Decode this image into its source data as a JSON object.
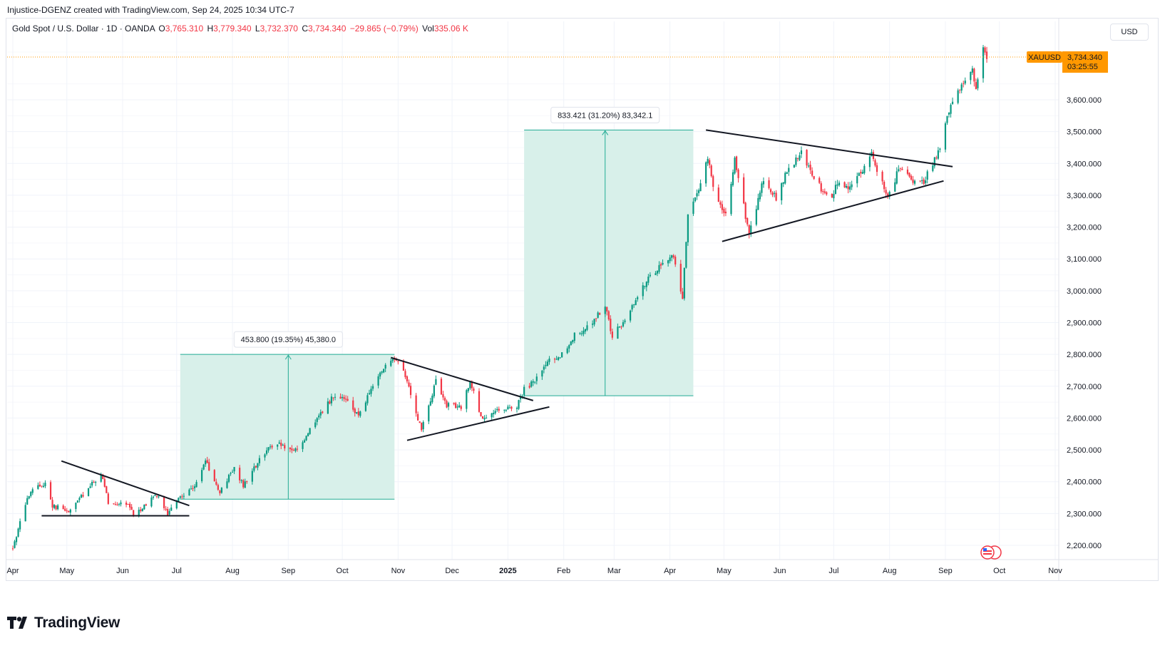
{
  "header": {
    "attribution": "Injustice-DGENZ created with TradingView.com, Sep 24, 2025 10:34 UTC-7"
  },
  "legend": {
    "symbol": "Gold Spot / U.S. Dollar · 1D · OANDA",
    "o_label": "O",
    "o": "3,765.310",
    "h_label": "H",
    "h": "3,779.340",
    "l_label": "L",
    "l": "3,732.370",
    "c_label": "C",
    "c": "3,734.340",
    "change": "−29.865 (−0.79%)",
    "vol_label": "Vol",
    "vol": "335.06 K"
  },
  "currency_button": "USD",
  "price_tag": {
    "symbol": "XAUUSD",
    "price": "3,734.340",
    "countdown": "03:25:55"
  },
  "brand": {
    "name": "TradingView"
  },
  "colors": {
    "up": "#089981",
    "down": "#f23645",
    "accent": "#ff9800",
    "zone": "#d6efe9",
    "zone_line": "#22ab94"
  },
  "chart_data": {
    "type": "candlestick",
    "title": "Gold Spot / U.S. Dollar",
    "interval": "1D",
    "ylim": [
      2150,
      3850
    ],
    "y_ticks": [
      {
        "value": 2200,
        "label": "2,200.000"
      },
      {
        "value": 2300,
        "label": "2,300.000"
      },
      {
        "value": 2400,
        "label": "2,400.000"
      },
      {
        "value": 2500,
        "label": "2,500.000"
      },
      {
        "value": 2600,
        "label": "2,600.000"
      },
      {
        "value": 2700,
        "label": "2,700.000"
      },
      {
        "value": 2800,
        "label": "2,800.000"
      },
      {
        "value": 2900,
        "label": "2,900.000"
      },
      {
        "value": 3000,
        "label": "3,000.000"
      },
      {
        "value": 3100,
        "label": "3,100.000"
      },
      {
        "value": 3200,
        "label": "3,200.000"
      },
      {
        "value": 3300,
        "label": "3,300.000"
      },
      {
        "value": 3400,
        "label": "3,400.000"
      },
      {
        "value": 3500,
        "label": "3,500.000"
      },
      {
        "value": 3600,
        "label": "3,600.000"
      }
    ],
    "x_range": [
      "2024-04-01",
      "2025-11-01"
    ],
    "x_ticks": [
      {
        "date": "2024-04-01",
        "label": "Apr",
        "bold": false
      },
      {
        "date": "2024-05-01",
        "label": "May",
        "bold": false
      },
      {
        "date": "2024-06-01",
        "label": "Jun",
        "bold": false
      },
      {
        "date": "2024-07-01",
        "label": "Jul",
        "bold": false
      },
      {
        "date": "2024-08-01",
        "label": "Aug",
        "bold": false
      },
      {
        "date": "2024-09-01",
        "label": "Sep",
        "bold": false
      },
      {
        "date": "2024-10-01",
        "label": "Oct",
        "bold": false
      },
      {
        "date": "2024-11-01",
        "label": "Nov",
        "bold": false
      },
      {
        "date": "2024-12-01",
        "label": "Dec",
        "bold": false
      },
      {
        "date": "2025-01-01",
        "label": "2025",
        "bold": true
      },
      {
        "date": "2025-02-01",
        "label": "Feb",
        "bold": false
      },
      {
        "date": "2025-03-01",
        "label": "Mar",
        "bold": false
      },
      {
        "date": "2025-04-01",
        "label": "Apr",
        "bold": false
      },
      {
        "date": "2025-05-01",
        "label": "May",
        "bold": false
      },
      {
        "date": "2025-06-01",
        "label": "Jun",
        "bold": false
      },
      {
        "date": "2025-07-01",
        "label": "Jul",
        "bold": false
      },
      {
        "date": "2025-08-01",
        "label": "Aug",
        "bold": false
      },
      {
        "date": "2025-09-01",
        "label": "Sep",
        "bold": false
      },
      {
        "date": "2025-10-01",
        "label": "Oct",
        "bold": false
      },
      {
        "date": "2025-11-01",
        "label": "Nov",
        "bold": false
      }
    ],
    "last_price": 3734.34,
    "close_path": [
      [
        "2024-04-01",
        2190
      ],
      [
        "2024-04-08",
        2330
      ],
      [
        "2024-04-12",
        2375
      ],
      [
        "2024-04-19",
        2395
      ],
      [
        "2024-04-23",
        2325
      ],
      [
        "2024-05-02",
        2305
      ],
      [
        "2024-05-10",
        2360
      ],
      [
        "2024-05-20",
        2425
      ],
      [
        "2024-05-24",
        2335
      ],
      [
        "2024-06-04",
        2330
      ],
      [
        "2024-06-07",
        2295
      ],
      [
        "2024-06-14",
        2330
      ],
      [
        "2024-06-20",
        2360
      ],
      [
        "2024-06-26",
        2300
      ],
      [
        "2024-07-03",
        2355
      ],
      [
        "2024-07-10",
        2380
      ],
      [
        "2024-07-17",
        2465
      ],
      [
        "2024-07-25",
        2365
      ],
      [
        "2024-08-02",
        2445
      ],
      [
        "2024-08-07",
        2385
      ],
      [
        "2024-08-15",
        2460
      ],
      [
        "2024-08-21",
        2510
      ],
      [
        "2024-08-26",
        2520
      ],
      [
        "2024-09-06",
        2495
      ],
      [
        "2024-09-12",
        2555
      ],
      [
        "2024-09-20",
        2620
      ],
      [
        "2024-09-26",
        2670
      ],
      [
        "2024-10-02",
        2660
      ],
      [
        "2024-10-10",
        2610
      ],
      [
        "2024-10-18",
        2700
      ],
      [
        "2024-10-22",
        2745
      ],
      [
        "2024-10-30",
        2785
      ],
      [
        "2024-11-05",
        2735
      ],
      [
        "2024-11-12",
        2600
      ],
      [
        "2024-11-14",
        2565
      ],
      [
        "2024-11-22",
        2715
      ],
      [
        "2024-11-28",
        2640
      ],
      [
        "2024-12-06",
        2635
      ],
      [
        "2024-12-11",
        2715
      ],
      [
        "2024-12-18",
        2590
      ],
      [
        "2024-12-27",
        2625
      ],
      [
        "2025-01-06",
        2640
      ],
      [
        "2025-01-10",
        2690
      ],
      [
        "2025-01-16",
        2715
      ],
      [
        "2025-01-24",
        2780
      ],
      [
        "2025-01-31",
        2800
      ],
      [
        "2025-02-07",
        2860
      ],
      [
        "2025-02-14",
        2885
      ],
      [
        "2025-02-24",
        2950
      ],
      [
        "2025-02-28",
        2855
      ],
      [
        "2025-03-07",
        2910
      ],
      [
        "2025-03-14",
        2985
      ],
      [
        "2025-03-20",
        3040
      ],
      [
        "2025-03-28",
        3085
      ],
      [
        "2025-04-03",
        3110
      ],
      [
        "2025-04-08",
        2980
      ],
      [
        "2025-04-11",
        3235
      ],
      [
        "2025-04-17",
        3325
      ],
      [
        "2025-04-22",
        3420
      ],
      [
        "2025-04-25",
        3320
      ],
      [
        "2025-05-02",
        3240
      ],
      [
        "2025-05-07",
        3415
      ],
      [
        "2025-05-15",
        3175
      ],
      [
        "2025-05-23",
        3355
      ],
      [
        "2025-05-30",
        3290
      ],
      [
        "2025-06-05",
        3375
      ],
      [
        "2025-06-13",
        3430
      ],
      [
        "2025-06-24",
        3320
      ],
      [
        "2025-06-30",
        3300
      ],
      [
        "2025-07-03",
        3340
      ],
      [
        "2025-07-10",
        3320
      ],
      [
        "2025-07-22",
        3430
      ],
      [
        "2025-07-31",
        3290
      ],
      [
        "2025-08-07",
        3395
      ],
      [
        "2025-08-14",
        3335
      ],
      [
        "2025-08-20",
        3340
      ],
      [
        "2025-08-29",
        3450
      ],
      [
        "2025-09-03",
        3560
      ],
      [
        "2025-09-09",
        3640
      ],
      [
        "2025-09-16",
        3690
      ],
      [
        "2025-09-18",
        3640
      ],
      [
        "2025-09-22",
        3760
      ],
      [
        "2025-09-24",
        3734
      ]
    ],
    "annotations": {
      "measurements": [
        {
          "label": "453.800 (19.35%) 45,380.0",
          "x_start": "2024-07-03",
          "x_end": "2024-10-30",
          "y_low": 2345,
          "y_high": 2800,
          "arrow_x": "2024-09-01"
        },
        {
          "label": "833.421 (31.20%) 83,342.1",
          "x_start": "2025-01-10",
          "x_end": "2025-04-14",
          "y_low": 2670,
          "y_high": 3505,
          "arrow_x": "2025-02-24"
        }
      ],
      "trendlines": [
        {
          "from": [
            "2024-04-17",
            2293
          ],
          "to": [
            "2024-07-08",
            2293
          ]
        },
        {
          "from": [
            "2024-04-28",
            2465
          ],
          "to": [
            "2024-07-08",
            2325
          ]
        },
        {
          "from": [
            "2024-10-28",
            2790
          ],
          "to": [
            "2025-01-15",
            2655
          ]
        },
        {
          "from": [
            "2024-11-06",
            2530
          ],
          "to": [
            "2025-01-24",
            2635
          ]
        },
        {
          "from": [
            "2025-04-21",
            3505
          ],
          "to": [
            "2025-09-05",
            3390
          ]
        },
        {
          "from": [
            "2025-04-30",
            3155
          ],
          "to": [
            "2025-08-31",
            3345
          ]
        }
      ]
    }
  }
}
